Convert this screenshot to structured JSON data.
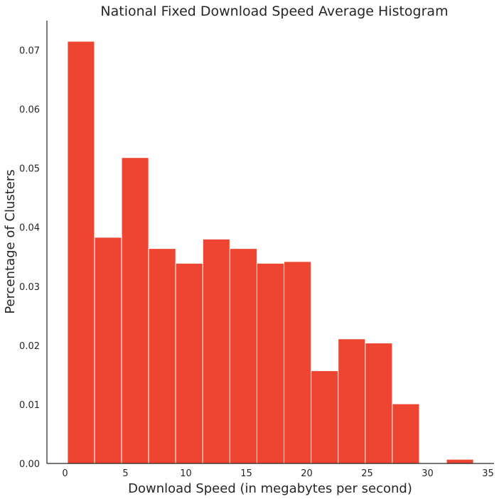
{
  "chart_data": {
    "type": "bar",
    "title": "National Fixed Download Speed Average Histogram",
    "xlabel": "Download Speed (in megabytes per second)",
    "ylabel": "Percentage of Clusters",
    "xlim": [
      -1.5,
      35.5
    ],
    "ylim": [
      0,
      0.075
    ],
    "xticks": [
      0,
      5,
      10,
      15,
      20,
      25,
      30,
      35
    ],
    "yticks": [
      "0.00",
      "0.01",
      "0.02",
      "0.03",
      "0.04",
      "0.05",
      "0.06",
      "0.07"
    ],
    "bar_color": "#ee4532",
    "bins": [
      {
        "x0": 0.2,
        "x1": 2.44,
        "value": 0.0715
      },
      {
        "x0": 2.44,
        "x1": 4.68,
        "value": 0.0383
      },
      {
        "x0": 4.68,
        "x1": 6.92,
        "value": 0.0518
      },
      {
        "x0": 6.92,
        "x1": 9.16,
        "value": 0.0364
      },
      {
        "x0": 9.16,
        "x1": 11.4,
        "value": 0.0339
      },
      {
        "x0": 11.4,
        "x1": 13.64,
        "value": 0.038
      },
      {
        "x0": 13.64,
        "x1": 15.88,
        "value": 0.0364
      },
      {
        "x0": 15.88,
        "x1": 18.12,
        "value": 0.0339
      },
      {
        "x0": 18.12,
        "x1": 20.36,
        "value": 0.0342
      },
      {
        "x0": 20.36,
        "x1": 22.6,
        "value": 0.0157
      },
      {
        "x0": 22.6,
        "x1": 24.84,
        "value": 0.0211
      },
      {
        "x0": 24.84,
        "x1": 27.08,
        "value": 0.0204
      },
      {
        "x0": 27.08,
        "x1": 29.32,
        "value": 0.0101
      },
      {
        "x0": 29.32,
        "x1": 31.56,
        "value": 0.0
      },
      {
        "x0": 31.56,
        "x1": 33.8,
        "value": 0.0007
      }
    ]
  }
}
